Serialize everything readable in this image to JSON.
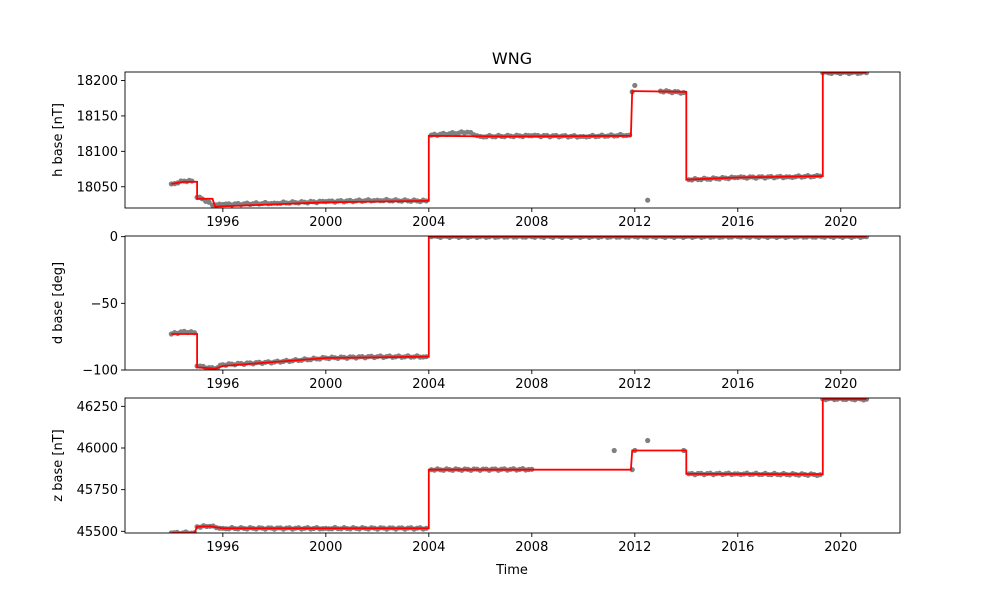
{
  "chart_data": {
    "type": "scatter",
    "title": "WNG",
    "xlabel": "Time",
    "x_ticks": [
      "1996",
      "2000",
      "2004",
      "2008",
      "2012",
      "2016",
      "2020"
    ],
    "colors": {
      "points": "#808080",
      "fit": "#ff0000",
      "axes": "#000000"
    },
    "panels": [
      {
        "ylabel": "h base [nT]",
        "ylim": [
          18020,
          18212
        ],
        "y_ticks": [
          "18050",
          "18100",
          "18150",
          "18200"
        ],
        "points": [
          [
            1994.0,
            18054
          ],
          [
            1994.5,
            18058
          ],
          [
            1994.8,
            18058
          ],
          [
            1995.0,
            18035
          ],
          [
            1995.2,
            18033
          ],
          [
            1995.6,
            18024
          ],
          [
            1996.0,
            18025
          ],
          [
            1998.0,
            18027
          ],
          [
            2000.0,
            18029
          ],
          [
            2002.0,
            18031
          ],
          [
            2003.9,
            18030
          ],
          [
            2004.1,
            18123
          ],
          [
            2005.5,
            18127
          ],
          [
            2006.0,
            18121
          ],
          [
            2008.0,
            18122
          ],
          [
            2010.0,
            18121
          ],
          [
            2011.8,
            18123
          ],
          [
            2011.9,
            18184
          ],
          [
            2012.0,
            18193
          ],
          [
            2012.5,
            18031
          ],
          [
            2013.0,
            18185
          ],
          [
            2013.9,
            18183
          ],
          [
            2014.1,
            18060
          ],
          [
            2016.0,
            18063
          ],
          [
            2018.0,
            18064
          ],
          [
            2019.2,
            18065
          ],
          [
            2019.3,
            18211
          ],
          [
            2021.0,
            18211
          ]
        ],
        "fit": [
          [
            1994.0,
            18054
          ],
          [
            1994.5,
            18057
          ],
          [
            1995.0,
            18057
          ],
          [
            1995.0,
            18033
          ],
          [
            1995.6,
            18033
          ],
          [
            1995.7,
            18022
          ],
          [
            2000.0,
            18028
          ],
          [
            2003.9,
            18030
          ],
          [
            2004.0,
            18030
          ],
          [
            2004.0,
            18122
          ],
          [
            2007.0,
            18121
          ],
          [
            2011.85,
            18122
          ],
          [
            2011.9,
            18185
          ],
          [
            2013.95,
            18184
          ],
          [
            2014.0,
            18184
          ],
          [
            2014.0,
            18060
          ],
          [
            2016.0,
            18063
          ],
          [
            2019.2,
            18065
          ],
          [
            2019.3,
            18065
          ],
          [
            2019.3,
            18211
          ],
          [
            2021.0,
            18211
          ]
        ]
      },
      {
        "ylabel": "d base [deg]",
        "ylim": [
          -100,
          0.5
        ],
        "y_ticks": [
          "−100",
          "−50",
          "0"
        ],
        "points": [
          [
            1994.0,
            -73
          ],
          [
            1994.5,
            -71
          ],
          [
            1994.9,
            -72
          ],
          [
            1995.0,
            -97
          ],
          [
            1995.7,
            -99
          ],
          [
            1996.0,
            -96
          ],
          [
            1998.0,
            -94
          ],
          [
            2000.0,
            -91
          ],
          [
            2002.0,
            -90
          ],
          [
            2003.9,
            -90
          ],
          [
            2004.1,
            0
          ],
          [
            2008.0,
            0
          ],
          [
            2012.0,
            0
          ],
          [
            2016.0,
            0
          ],
          [
            2021.0,
            0
          ]
        ],
        "fit": [
          [
            1994.0,
            -73
          ],
          [
            1995.0,
            -73
          ],
          [
            1995.0,
            -98
          ],
          [
            1995.7,
            -99
          ],
          [
            1996.0,
            -97
          ],
          [
            1998.0,
            -94
          ],
          [
            2000.0,
            -91
          ],
          [
            2003.9,
            -90
          ],
          [
            2004.0,
            -90
          ],
          [
            2004.0,
            0
          ],
          [
            2021.0,
            0
          ]
        ]
      },
      {
        "ylabel": "z base [nT]",
        "ylim": [
          45490,
          46300
        ],
        "y_ticks": [
          "45500",
          "45750",
          "46000",
          "46250"
        ],
        "points": [
          [
            1994.0,
            45490
          ],
          [
            1994.9,
            45492
          ],
          [
            1995.0,
            45528
          ],
          [
            1995.5,
            45530
          ],
          [
            1996.0,
            45518
          ],
          [
            2000.0,
            45518
          ],
          [
            2003.9,
            45518
          ],
          [
            2004.1,
            45870
          ],
          [
            2008.0,
            45872
          ],
          [
            2011.2,
            45985
          ],
          [
            2011.9,
            45870
          ],
          [
            2012.0,
            45985
          ],
          [
            2012.5,
            46045
          ],
          [
            2013.9,
            45985
          ],
          [
            2014.1,
            45845
          ],
          [
            2016.0,
            45845
          ],
          [
            2019.2,
            45840
          ],
          [
            2019.3,
            46295
          ],
          [
            2021.0,
            46293
          ]
        ],
        "fit": [
          [
            1994.0,
            45490
          ],
          [
            1994.9,
            45490
          ],
          [
            1995.0,
            45528
          ],
          [
            1995.5,
            45530
          ],
          [
            1996.0,
            45518
          ],
          [
            2003.95,
            45518
          ],
          [
            2004.0,
            45518
          ],
          [
            2004.0,
            45870
          ],
          [
            2011.85,
            45870
          ],
          [
            2011.9,
            45985
          ],
          [
            2013.95,
            45985
          ],
          [
            2014.0,
            45985
          ],
          [
            2014.0,
            45845
          ],
          [
            2019.2,
            45842
          ],
          [
            2019.3,
            45842
          ],
          [
            2019.3,
            46293
          ],
          [
            2021.0,
            46293
          ]
        ]
      }
    ]
  }
}
